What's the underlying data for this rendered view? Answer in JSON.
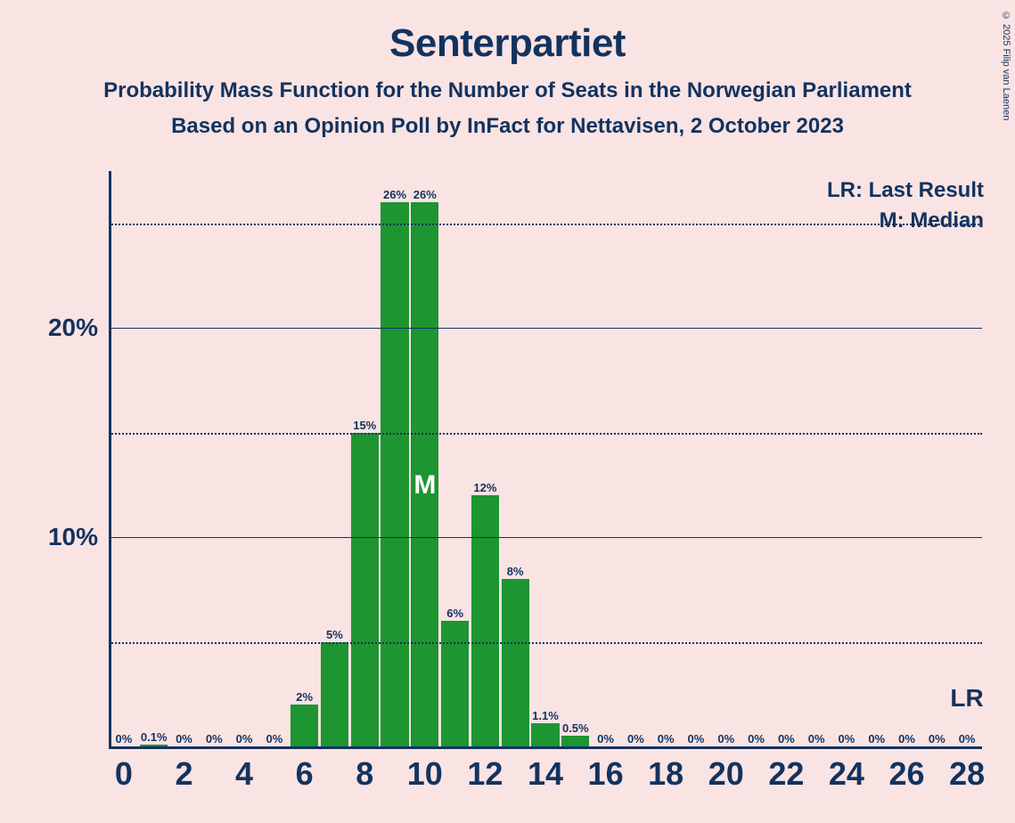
{
  "copyright": "© 2025 Filip van Laenen",
  "title": "Senterpartiet",
  "subtitle1": "Probability Mass Function for the Number of Seats in the Norwegian Parliament",
  "subtitle2": "Based on an Opinion Poll by InFact for Nettavisen, 2 October 2023",
  "legend_lr": "LR: Last Result",
  "legend_m": "M: Median",
  "lr_text": "LR",
  "median_text": "M",
  "chart": {
    "type": "bar",
    "background_color": "#fae3e3",
    "bar_color": "#1d9531",
    "axis_color": "#12335f",
    "text_color": "#12335f",
    "median_text_color": "#ffffff",
    "median_bar_index": 10,
    "lr_position": 28,
    "y_max": 27.5,
    "y_ticks_major": [
      10,
      20
    ],
    "y_ticks_minor": [
      5,
      15,
      25
    ],
    "x_ticks": [
      0,
      2,
      4,
      6,
      8,
      10,
      12,
      14,
      16,
      18,
      20,
      22,
      24,
      26,
      28
    ],
    "x_min": 0,
    "x_max": 28,
    "bar_width_ratio": 0.92,
    "bars": [
      {
        "x": 0,
        "value": 0,
        "label": "0%"
      },
      {
        "x": 1,
        "value": 0.1,
        "label": "0.1%"
      },
      {
        "x": 2,
        "value": 0,
        "label": "0%"
      },
      {
        "x": 3,
        "value": 0,
        "label": "0%"
      },
      {
        "x": 4,
        "value": 0,
        "label": "0%"
      },
      {
        "x": 5,
        "value": 0,
        "label": "0%"
      },
      {
        "x": 6,
        "value": 2,
        "label": "2%"
      },
      {
        "x": 7,
        "value": 5,
        "label": "5%"
      },
      {
        "x": 8,
        "value": 15,
        "label": "15%"
      },
      {
        "x": 9,
        "value": 26,
        "label": "26%"
      },
      {
        "x": 10,
        "value": 26,
        "label": "26%"
      },
      {
        "x": 11,
        "value": 6,
        "label": "6%"
      },
      {
        "x": 12,
        "value": 12,
        "label": "12%"
      },
      {
        "x": 13,
        "value": 8,
        "label": "8%"
      },
      {
        "x": 14,
        "value": 1.1,
        "label": "1.1%"
      },
      {
        "x": 15,
        "value": 0.5,
        "label": "0.5%"
      },
      {
        "x": 16,
        "value": 0,
        "label": "0%"
      },
      {
        "x": 17,
        "value": 0,
        "label": "0%"
      },
      {
        "x": 18,
        "value": 0,
        "label": "0%"
      },
      {
        "x": 19,
        "value": 0,
        "label": "0%"
      },
      {
        "x": 20,
        "value": 0,
        "label": "0%"
      },
      {
        "x": 21,
        "value": 0,
        "label": "0%"
      },
      {
        "x": 22,
        "value": 0,
        "label": "0%"
      },
      {
        "x": 23,
        "value": 0,
        "label": "0%"
      },
      {
        "x": 24,
        "value": 0,
        "label": "0%"
      },
      {
        "x": 25,
        "value": 0,
        "label": "0%"
      },
      {
        "x": 26,
        "value": 0,
        "label": "0%"
      },
      {
        "x": 27,
        "value": 0,
        "label": "0%"
      },
      {
        "x": 28,
        "value": 0,
        "label": "0%"
      }
    ]
  }
}
